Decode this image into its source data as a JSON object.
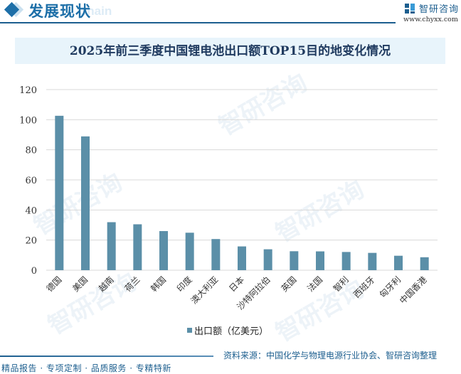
{
  "header": {
    "section_title": "发展现状",
    "section_ghost": "Chain",
    "logo_text": "智研咨询",
    "url": "www.chyxx.com"
  },
  "title": "2025年前三季度中国锂电池出口额TOP15目的地变化情况",
  "footer": {
    "left": "精品报告 · 专项定制 · 品质服务 · 专精特新",
    "source": "资料来源：中国化学与物理电源行业协会、智研咨询整理"
  },
  "watermark": "智研咨询",
  "colors": {
    "bar": "#5b8fa8",
    "accent": "#1d5f8f",
    "grid": "#d9d9d9"
  },
  "chart_data": {
    "type": "bar",
    "title": "2025年前三季度中国锂电池出口额TOP15目的地变化情况",
    "categories": [
      "德国",
      "美国",
      "越南",
      "荷兰",
      "韩国",
      "印度",
      "澳大利亚",
      "日本",
      "沙特阿拉伯",
      "英国",
      "法国",
      "智利",
      "西班牙",
      "匈牙利",
      "中国香港"
    ],
    "series": [
      {
        "name": "出口额（亿美元）",
        "values": [
          102.6,
          88.9,
          31.9,
          30.5,
          26.0,
          24.9,
          20.7,
          15.8,
          13.9,
          12.6,
          12.5,
          12.1,
          11.5,
          9.6,
          8.6
        ]
      }
    ],
    "xlabel": "",
    "ylabel": "",
    "ylim": [
      0,
      120
    ],
    "yticks": [
      0,
      20,
      40,
      60,
      80,
      100,
      120
    ],
    "grid": true,
    "legend_position": "bottom"
  }
}
